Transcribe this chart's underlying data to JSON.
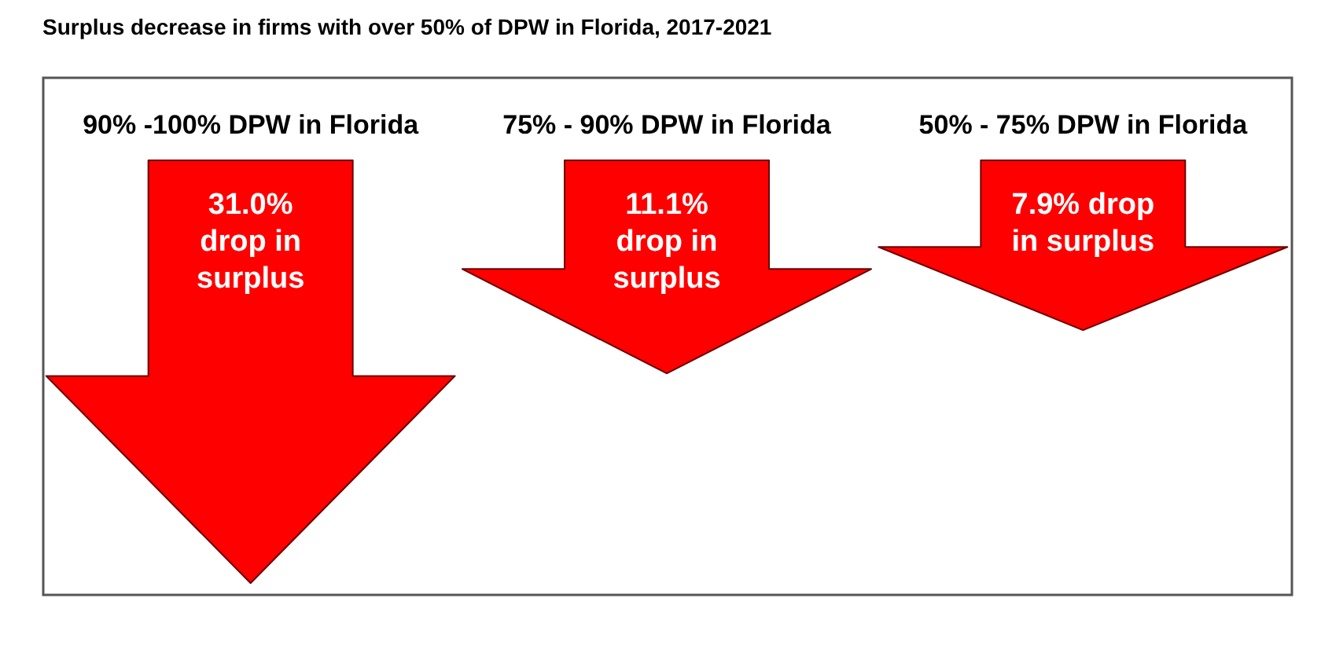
{
  "chart_data": {
    "type": "other",
    "title": "Surplus decrease in firms with over 50% of DPW in Florida, 2017-2021",
    "categories": [
      "90% -100% DPW in Florida",
      "75% - 90% DPW in Florida",
      "50% - 75% DPW in Florida"
    ],
    "values": [
      31.0,
      11.1,
      7.9
    ],
    "value_labels": [
      "31.0%\ndrop in\nsurplus",
      "11.1%\ndrop in\nsurplus",
      "7.9% drop\nin surplus"
    ],
    "color": "#ff0000"
  }
}
